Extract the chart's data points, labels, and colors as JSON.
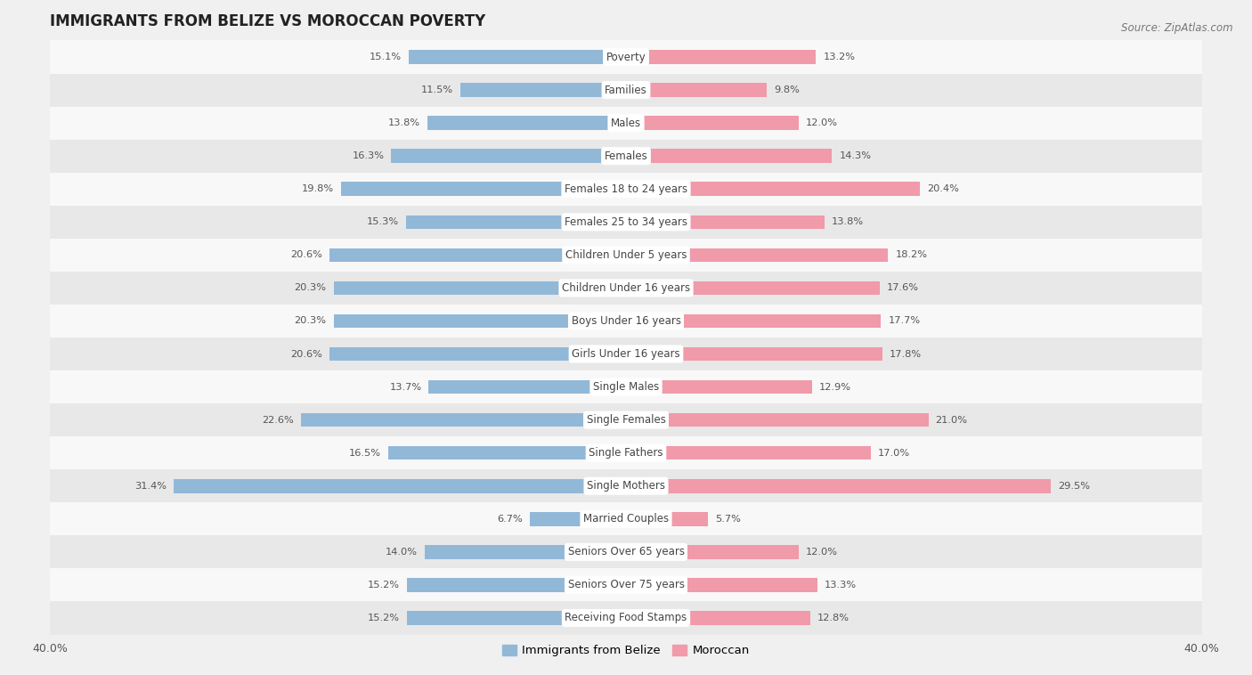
{
  "title": "IMMIGRANTS FROM BELIZE VS MOROCCAN POVERTY",
  "source": "Source: ZipAtlas.com",
  "categories": [
    "Poverty",
    "Families",
    "Males",
    "Females",
    "Females 18 to 24 years",
    "Females 25 to 34 years",
    "Children Under 5 years",
    "Children Under 16 years",
    "Boys Under 16 years",
    "Girls Under 16 years",
    "Single Males",
    "Single Females",
    "Single Fathers",
    "Single Mothers",
    "Married Couples",
    "Seniors Over 65 years",
    "Seniors Over 75 years",
    "Receiving Food Stamps"
  ],
  "belize_values": [
    15.1,
    11.5,
    13.8,
    16.3,
    19.8,
    15.3,
    20.6,
    20.3,
    20.3,
    20.6,
    13.7,
    22.6,
    16.5,
    31.4,
    6.7,
    14.0,
    15.2,
    15.2
  ],
  "moroccan_values": [
    13.2,
    9.8,
    12.0,
    14.3,
    20.4,
    13.8,
    18.2,
    17.6,
    17.7,
    17.8,
    12.9,
    21.0,
    17.0,
    29.5,
    5.7,
    12.0,
    13.3,
    12.8
  ],
  "belize_color": "#92b8d8",
  "moroccan_color": "#f09aaa",
  "background_color": "#f0f0f0",
  "row_color_light": "#f8f8f8",
  "row_color_dark": "#e8e8e8",
  "axis_limit": 40.0,
  "bar_height": 0.42,
  "legend_labels": [
    "Immigrants from Belize",
    "Moroccan"
  ]
}
